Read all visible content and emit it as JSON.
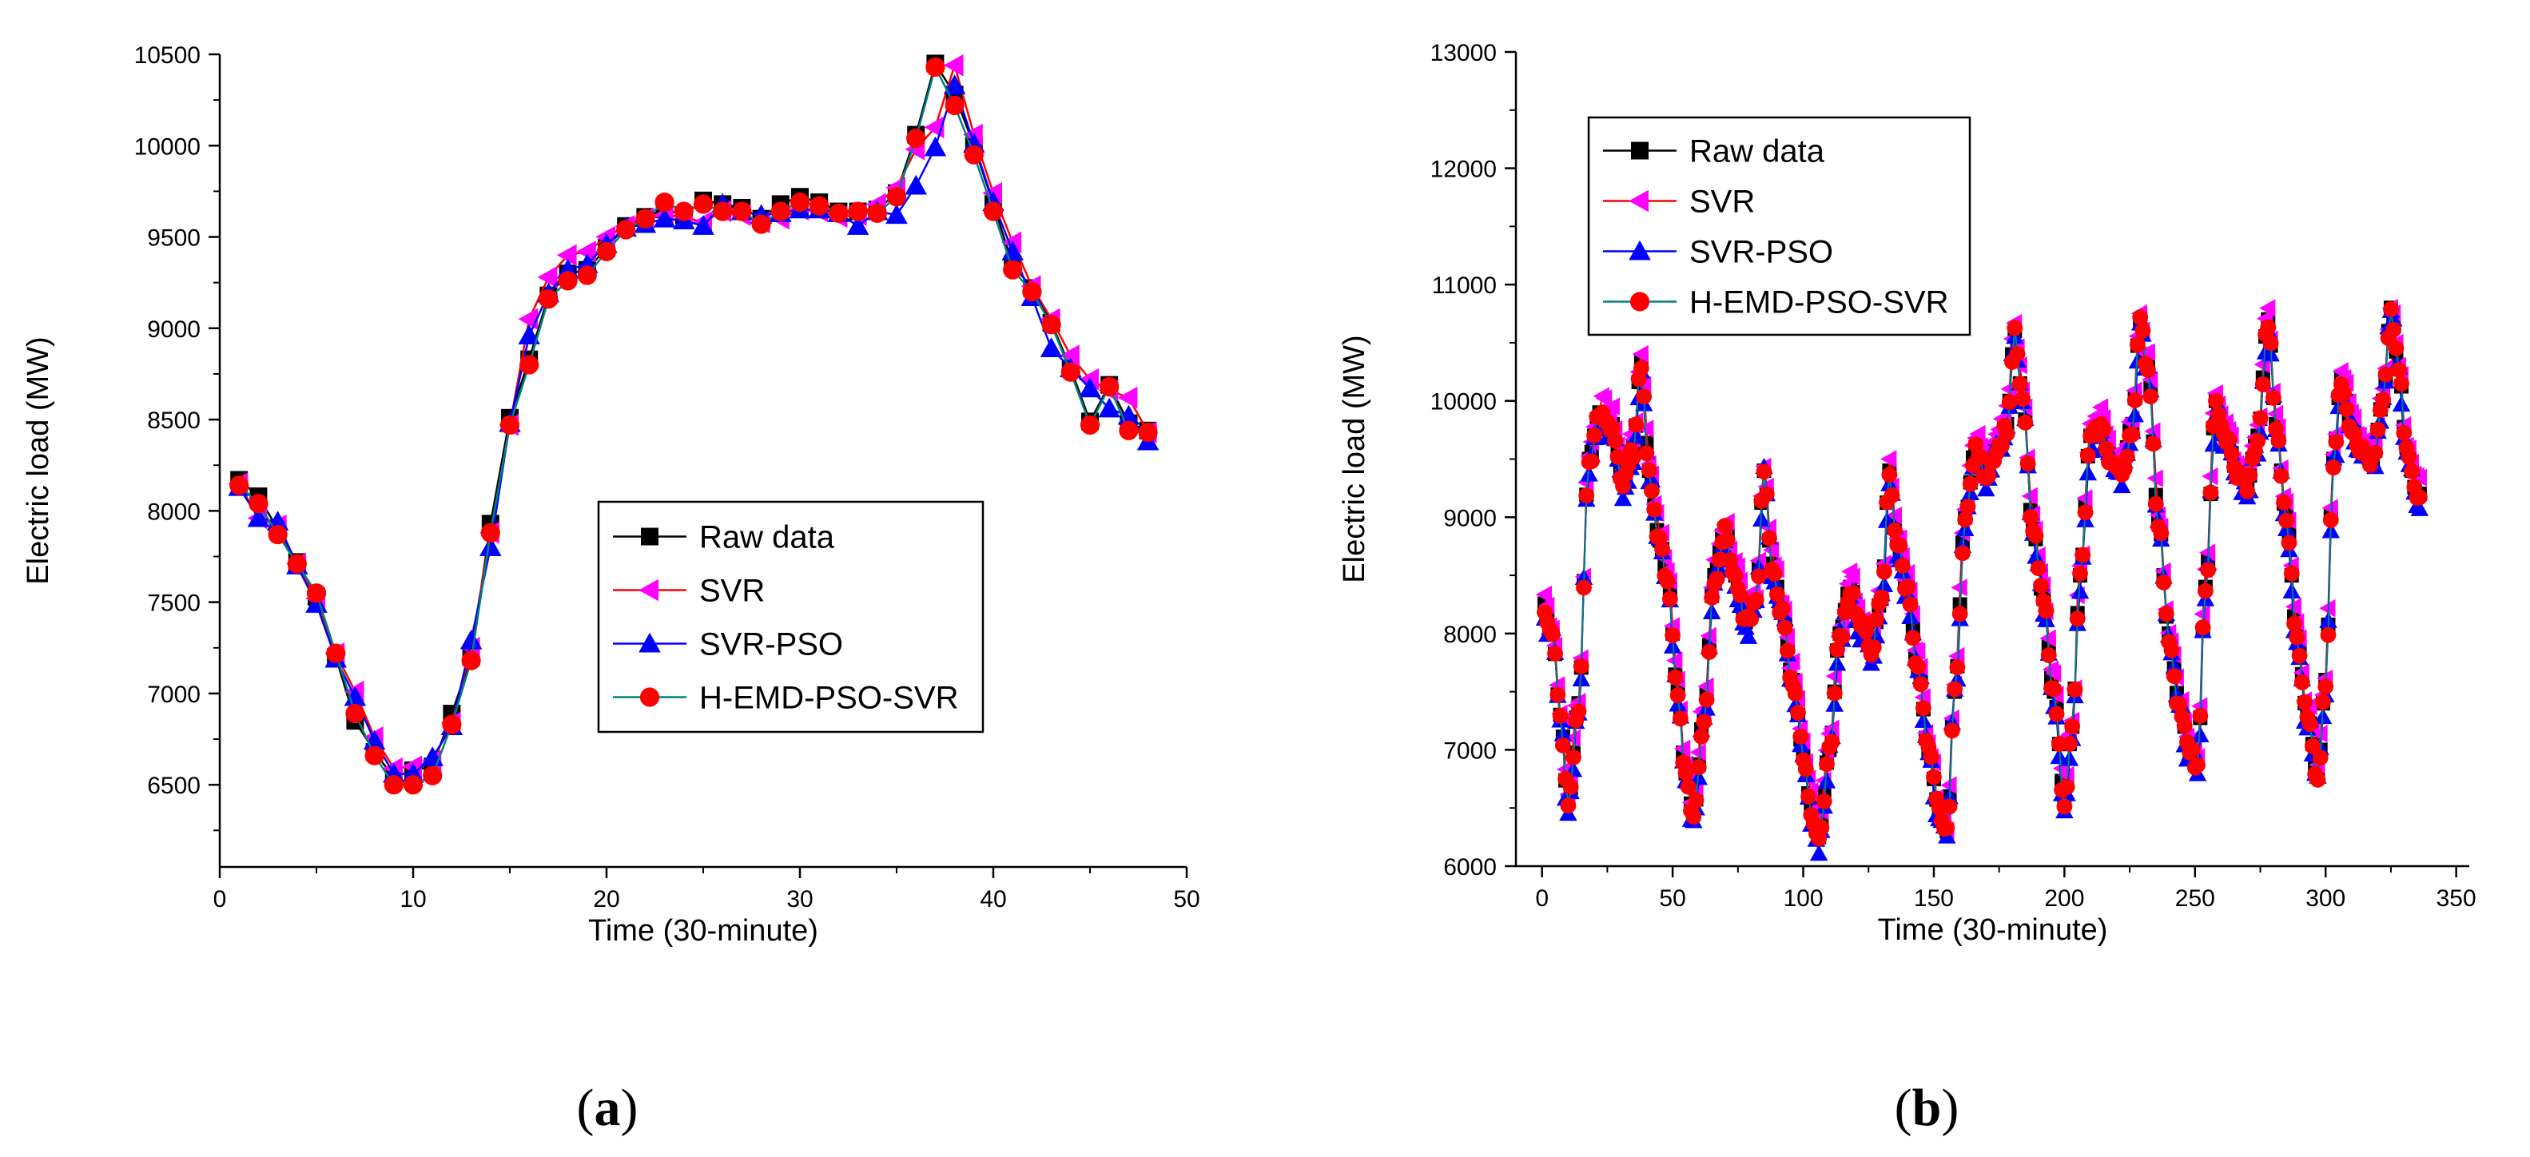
{
  "chart_data": [
    {
      "type": "line",
      "panel": "(a)",
      "xlabel": "Time (30-minute)",
      "ylabel": "Electric load (MW)",
      "xlim": [
        0,
        50
      ],
      "ylim": [
        6050,
        10500
      ],
      "xticks": [
        0,
        10,
        20,
        30,
        40,
        50
      ],
      "yticks": [
        6500,
        7000,
        7500,
        8000,
        8500,
        9000,
        9500,
        10000,
        10500
      ],
      "legend_position": "center-right",
      "x": [
        1,
        2,
        3,
        4,
        5,
        6,
        7,
        8,
        9,
        10,
        11,
        12,
        13,
        14,
        15,
        16,
        17,
        18,
        19,
        20,
        21,
        22,
        23,
        24,
        25,
        26,
        27,
        28,
        29,
        30,
        31,
        32,
        33,
        34,
        35,
        36,
        37,
        38,
        39,
        40,
        41,
        42,
        43,
        44,
        45,
        46,
        47,
        48
      ],
      "series": [
        {
          "name": "Raw data",
          "color": "#000000",
          "marker": "square",
          "values": [
            8170,
            8080,
            7900,
            7720,
            7530,
            7200,
            6850,
            6680,
            6540,
            6580,
            6600,
            6890,
            7200,
            7930,
            8510,
            8830,
            9180,
            9300,
            9320,
            9440,
            9560,
            9610,
            9650,
            9620,
            9700,
            9680,
            9660,
            9600,
            9680,
            9720,
            9690,
            9640,
            9640,
            9650,
            9740,
            10060,
            10450,
            10280,
            10000,
            9680,
            9350,
            9220,
            9030,
            8780,
            8490,
            8690,
            8480,
            8440
          ]
        },
        {
          "name": "SVR",
          "color": "#ff00ff",
          "marker": "triangle-left",
          "values": [
            8150,
            7960,
            7920,
            7710,
            7520,
            7220,
            7010,
            6760,
            6590,
            6600,
            6630,
            6840,
            7250,
            7880,
            8470,
            9050,
            9280,
            9400,
            9420,
            9500,
            9560,
            9600,
            9620,
            9610,
            9580,
            9640,
            9620,
            9580,
            9600,
            9650,
            9640,
            9610,
            9620,
            9680,
            9770,
            9980,
            10100,
            10440,
            10060,
            9740,
            9470,
            9230,
            9050,
            8850,
            8720,
            8660,
            8620,
            8430
          ]
        },
        {
          "name": "SVR-PSO",
          "color": "#0000ff",
          "marker": "triangle-up",
          "values": [
            8130,
            7960,
            7940,
            7700,
            7490,
            7190,
            6980,
            6740,
            6560,
            6560,
            6650,
            6820,
            7290,
            7800,
            8480,
            8960,
            9190,
            9320,
            9350,
            9460,
            9550,
            9570,
            9600,
            9590,
            9560,
            9680,
            9640,
            9620,
            9630,
            9650,
            9650,
            9630,
            9560,
            9640,
            9620,
            9780,
            9990,
            10330,
            10010,
            9690,
            9420,
            9170,
            8890,
            8780,
            8670,
            8560,
            8520,
            8380
          ]
        },
        {
          "name": "H-EMD-PSO-SVR",
          "color": "#ff0000",
          "marker": "circle",
          "values": [
            8140,
            8040,
            7870,
            7710,
            7550,
            7220,
            6890,
            6660,
            6500,
            6500,
            6550,
            6830,
            7180,
            7880,
            8470,
            8800,
            9160,
            9260,
            9290,
            9420,
            9540,
            9600,
            9690,
            9640,
            9680,
            9640,
            9640,
            9570,
            9640,
            9690,
            9670,
            9630,
            9640,
            9630,
            9720,
            10040,
            10430,
            10220,
            9950,
            9640,
            9320,
            9200,
            9020,
            8760,
            8470,
            8680,
            8440,
            8430
          ]
        }
      ]
    },
    {
      "type": "line",
      "panel": "(b)",
      "xlabel": "Time (30-minute)",
      "ylabel": "Electric load (MW)",
      "xlim": [
        -10,
        355
      ],
      "ylim": [
        6000,
        13000
      ],
      "xticks": [
        0,
        50,
        100,
        150,
        200,
        250,
        300,
        350
      ],
      "yticks": [
        6000,
        7000,
        8000,
        9000,
        10000,
        11000,
        12000,
        13000
      ],
      "legend_position": "top-left",
      "key_points": [
        [
          0,
          8300
        ],
        [
          4,
          8000
        ],
        [
          7,
          7300
        ],
        [
          10,
          6550
        ],
        [
          14,
          7400
        ],
        [
          18,
          9500
        ],
        [
          22,
          9900
        ],
        [
          27,
          9800
        ],
        [
          31,
          9300
        ],
        [
          35,
          9600
        ],
        [
          38,
          10350
        ],
        [
          41,
          9400
        ],
        [
          45,
          8800
        ],
        [
          48,
          8500
        ],
        [
          52,
          7500
        ],
        [
          55,
          6800
        ],
        [
          58,
          6450
        ],
        [
          62,
          7300
        ],
        [
          66,
          8500
        ],
        [
          70,
          8900
        ],
        [
          74,
          8500
        ],
        [
          78,
          8100
        ],
        [
          82,
          8300
        ],
        [
          85,
          9400
        ],
        [
          88,
          8600
        ],
        [
          92,
          8200
        ],
        [
          96,
          7600
        ],
        [
          100,
          7000
        ],
        [
          103,
          6500
        ],
        [
          106,
          6250
        ],
        [
          110,
          7000
        ],
        [
          114,
          8000
        ],
        [
          118,
          8400
        ],
        [
          122,
          8100
        ],
        [
          126,
          7900
        ],
        [
          130,
          8300
        ],
        [
          133,
          9400
        ],
        [
          136,
          8800
        ],
        [
          140,
          8400
        ],
        [
          144,
          7700
        ],
        [
          148,
          7000
        ],
        [
          152,
          6500
        ],
        [
          155,
          6300
        ],
        [
          158,
          7500
        ],
        [
          162,
          9000
        ],
        [
          166,
          9600
        ],
        [
          170,
          9400
        ],
        [
          174,
          9600
        ],
        [
          178,
          9800
        ],
        [
          181,
          10600
        ],
        [
          184,
          10000
        ],
        [
          188,
          8900
        ],
        [
          192,
          8300
        ],
        [
          196,
          7500
        ],
        [
          200,
          6600
        ],
        [
          203,
          7200
        ],
        [
          206,
          8500
        ],
        [
          210,
          9700
        ],
        [
          214,
          9800
        ],
        [
          218,
          9500
        ],
        [
          222,
          9400
        ],
        [
          226,
          9800
        ],
        [
          229,
          10700
        ],
        [
          232,
          10300
        ],
        [
          236,
          9000
        ],
        [
          240,
          8000
        ],
        [
          244,
          7400
        ],
        [
          248,
          7000
        ],
        [
          251,
          6900
        ],
        [
          254,
          8400
        ],
        [
          258,
          10000
        ],
        [
          262,
          9700
        ],
        [
          266,
          9400
        ],
        [
          270,
          9300
        ],
        [
          274,
          9700
        ],
        [
          278,
          10700
        ],
        [
          281,
          9800
        ],
        [
          285,
          9000
        ],
        [
          289,
          8000
        ],
        [
          293,
          7300
        ],
        [
          297,
          6800
        ],
        [
          300,
          7600
        ],
        [
          303,
          9500
        ],
        [
          306,
          10200
        ],
        [
          310,
          9800
        ],
        [
          314,
          9600
        ],
        [
          318,
          9500
        ],
        [
          322,
          10000
        ],
        [
          325,
          10800
        ],
        [
          328,
          10300
        ],
        [
          331,
          9600
        ],
        [
          335,
          9200
        ]
      ],
      "series": [
        {
          "name": "Raw data",
          "color": "#000000",
          "marker": "square"
        },
        {
          "name": "SVR",
          "color": "#ff00ff",
          "marker": "triangle-left"
        },
        {
          "name": "SVR-PSO",
          "color": "#0000ff",
          "marker": "triangle-up"
        },
        {
          "name": "H-EMD-PSO-SVR",
          "color": "#ff0000",
          "marker": "circle"
        }
      ]
    }
  ],
  "captions": {
    "a": {
      "open": "(",
      "letter": "a",
      "close": ")"
    },
    "b": {
      "open": "(",
      "letter": "b",
      "close": ")"
    }
  }
}
